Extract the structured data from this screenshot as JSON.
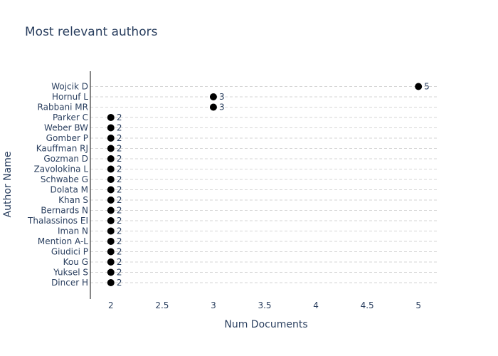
{
  "chart_data": {
    "type": "scatter",
    "title": "Most relevant authors",
    "xlabel": "Num Documents",
    "ylabel": "Author Name",
    "xlim": [
      1.8,
      5.2
    ],
    "xticks": [
      2,
      2.5,
      3,
      3.5,
      4,
      4.5,
      5
    ],
    "grid": "horizontal",
    "categories": [
      "Wojcik D",
      "Hornuf L",
      "Rabbani MR",
      "Parker C",
      "Weber BW",
      "Gomber P",
      "Kauffman RJ",
      "Gozman D",
      "Zavolokina L",
      "Schwabe G",
      "Dolata M",
      "Khan S",
      "Bernards N",
      "Thalassinos EI",
      "Iman N",
      "Mention A-L",
      "Giudici P",
      "Kou G",
      "Yuksel S",
      "Dincer H"
    ],
    "values": [
      5,
      3,
      3,
      2,
      2,
      2,
      2,
      2,
      2,
      2,
      2,
      2,
      2,
      2,
      2,
      2,
      2,
      2,
      2,
      2
    ],
    "marker_color": "#000000"
  }
}
